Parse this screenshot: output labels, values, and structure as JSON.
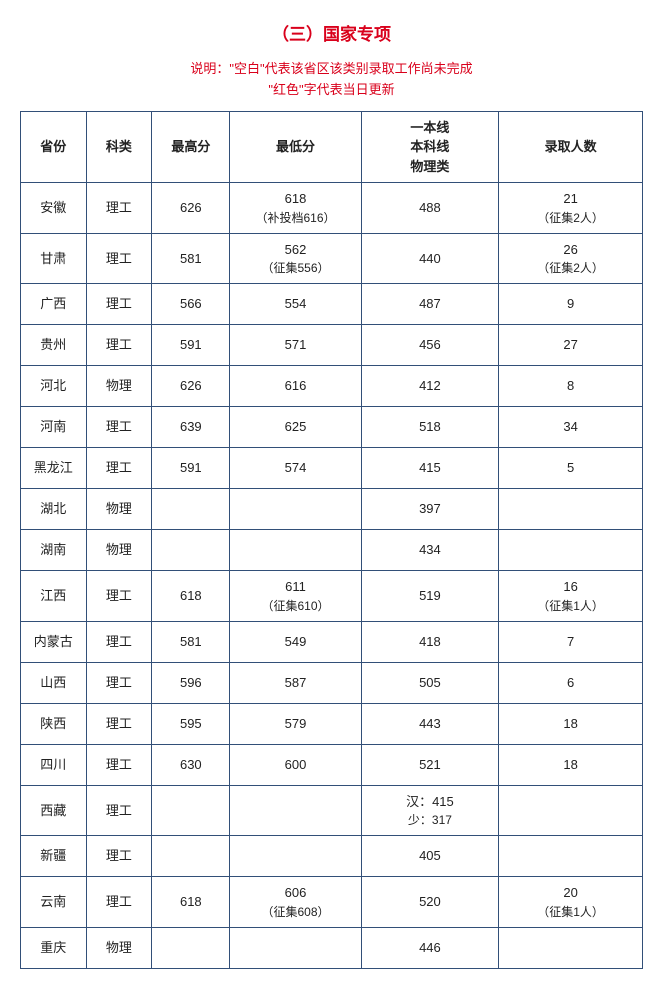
{
  "colors": {
    "accent": "#d9001b",
    "border": "#324f78",
    "text": "#222222",
    "background": "#ffffff"
  },
  "title": "（三）国家专项",
  "note_line1": "说明：\"空白\"代表该省区该类别录取工作尚未完成",
  "note_line2": "\"红色\"字代表当日更新",
  "headers": {
    "province": "省份",
    "category": "科类",
    "max": "最高分",
    "min": "最低分",
    "line_l1": "一本线",
    "line_l2": "本科线",
    "line_l3": "物理类",
    "count": "录取人数"
  },
  "rows": [
    {
      "province": "安徽",
      "category": "理工",
      "max": "626",
      "min": "618",
      "min_sub": "（补投档616）",
      "line": "488",
      "line_sub": "",
      "count": "21",
      "count_sub": "（征集2人）"
    },
    {
      "province": "甘肃",
      "category": "理工",
      "max": "581",
      "min": "562",
      "min_sub": "（征集556）",
      "line": "440",
      "line_sub": "",
      "count": "26",
      "count_sub": "（征集2人）"
    },
    {
      "province": "广西",
      "category": "理工",
      "max": "566",
      "min": "554",
      "min_sub": "",
      "line": "487",
      "line_sub": "",
      "count": "9",
      "count_sub": ""
    },
    {
      "province": "贵州",
      "category": "理工",
      "max": "591",
      "min": "571",
      "min_sub": "",
      "line": "456",
      "line_sub": "",
      "count": "27",
      "count_sub": ""
    },
    {
      "province": "河北",
      "category": "物理",
      "max": "626",
      "min": "616",
      "min_sub": "",
      "line": "412",
      "line_sub": "",
      "count": "8",
      "count_sub": ""
    },
    {
      "province": "河南",
      "category": "理工",
      "max": "639",
      "min": "625",
      "min_sub": "",
      "line": "518",
      "line_sub": "",
      "count": "34",
      "count_sub": ""
    },
    {
      "province": "黑龙江",
      "category": "理工",
      "max": "591",
      "min": "574",
      "min_sub": "",
      "line": "415",
      "line_sub": "",
      "count": "5",
      "count_sub": ""
    },
    {
      "province": "湖北",
      "category": "物理",
      "max": "",
      "min": "",
      "min_sub": "",
      "line": "397",
      "line_sub": "",
      "count": "",
      "count_sub": ""
    },
    {
      "province": "湖南",
      "category": "物理",
      "max": "",
      "min": "",
      "min_sub": "",
      "line": "434",
      "line_sub": "",
      "count": "",
      "count_sub": ""
    },
    {
      "province": "江西",
      "category": "理工",
      "max": "618",
      "min": "611",
      "min_sub": "（征集610）",
      "line": "519",
      "line_sub": "",
      "count": "16",
      "count_sub": "（征集1人）"
    },
    {
      "province": "内蒙古",
      "category": "理工",
      "max": "581",
      "min": "549",
      "min_sub": "",
      "line": "418",
      "line_sub": "",
      "count": "7",
      "count_sub": ""
    },
    {
      "province": "山西",
      "category": "理工",
      "max": "596",
      "min": "587",
      "min_sub": "",
      "line": "505",
      "line_sub": "",
      "count": "6",
      "count_sub": ""
    },
    {
      "province": "陕西",
      "category": "理工",
      "max": "595",
      "min": "579",
      "min_sub": "",
      "line": "443",
      "line_sub": "",
      "count": "18",
      "count_sub": ""
    },
    {
      "province": "四川",
      "category": "理工",
      "max": "630",
      "min": "600",
      "min_sub": "",
      "line": "521",
      "line_sub": "",
      "count": "18",
      "count_sub": ""
    },
    {
      "province": "西藏",
      "category": "理工",
      "max": "",
      "min": "",
      "min_sub": "",
      "line": "汉：415",
      "line_sub": "少：317",
      "count": "",
      "count_sub": ""
    },
    {
      "province": "新疆",
      "category": "理工",
      "max": "",
      "min": "",
      "min_sub": "",
      "line": "405",
      "line_sub": "",
      "count": "",
      "count_sub": ""
    },
    {
      "province": "云南",
      "category": "理工",
      "max": "618",
      "min": "606",
      "min_sub": "（征集608）",
      "line": "520",
      "line_sub": "",
      "count": "20",
      "count_sub": "（征集1人）"
    },
    {
      "province": "重庆",
      "category": "物理",
      "max": "",
      "min": "",
      "min_sub": "",
      "line": "446",
      "line_sub": "",
      "count": "",
      "count_sub": ""
    }
  ]
}
